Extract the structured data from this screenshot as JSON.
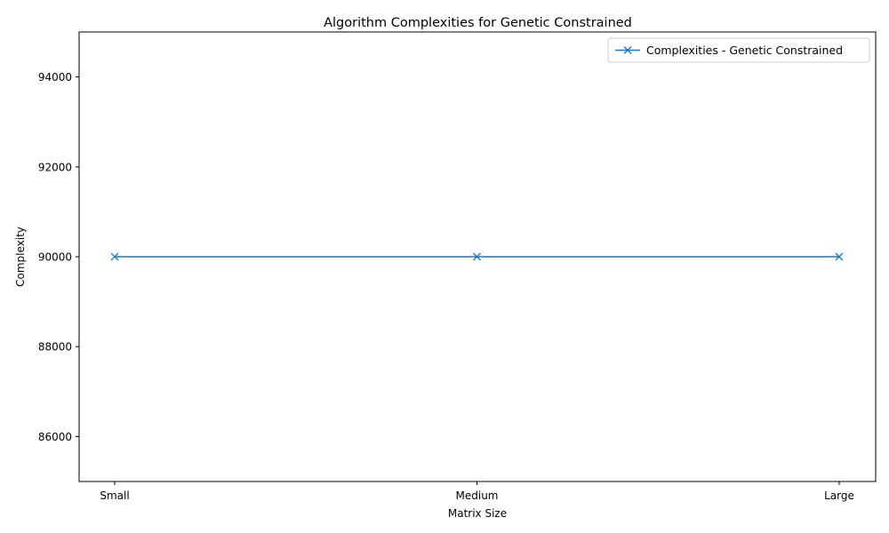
{
  "chart_data": {
    "type": "line",
    "title": "Algorithm Complexities for Genetic Constrained",
    "xlabel": "Matrix Size",
    "ylabel": "Complexity",
    "categories": [
      "Small",
      "Medium",
      "Large"
    ],
    "series": [
      {
        "name": "Complexities - Genetic Constrained",
        "values": [
          90000,
          90000,
          90000
        ],
        "color": "#1f77b4",
        "marker": "x"
      }
    ],
    "ylim": [
      85000,
      95000
    ],
    "yticks": [
      86000,
      88000,
      90000,
      92000,
      94000
    ],
    "grid": false,
    "legend_position": "upper right"
  }
}
